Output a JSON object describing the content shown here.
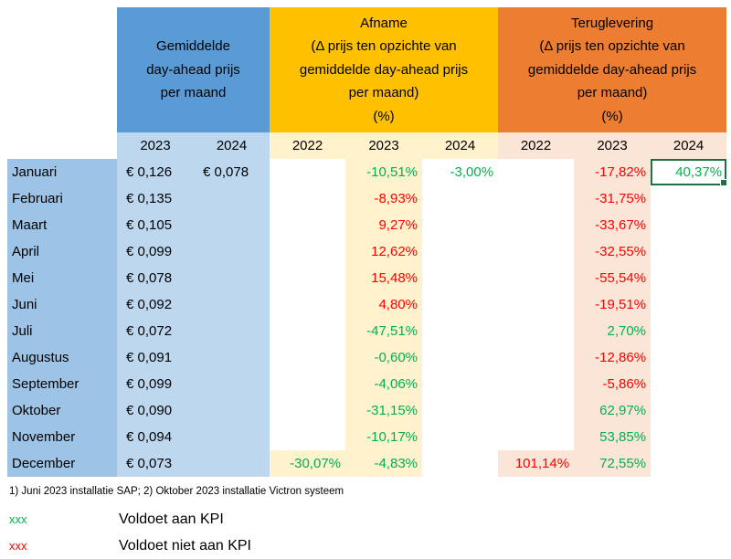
{
  "colors": {
    "group_header_blue": "#5B9BD5",
    "month_column_blue": "#9DC3E6",
    "price_column_blue": "#BDD7EE",
    "group_header_gold": "#FFC000",
    "afname_tint": "#FFF2CC",
    "group_header_orange": "#ED7D31",
    "teruglevering_tint": "#FBE5D6",
    "kpi_good_green": "#00B050",
    "kpi_bad_red": "#FF0000",
    "selection_border_green": "#1E7145"
  },
  "header": {
    "price": {
      "lines": [
        "Gemiddelde",
        "day-ahead prijs",
        "per maand"
      ]
    },
    "afname": {
      "lines": [
        "Afname",
        "(Δ prijs ten opzichte van",
        "gemiddelde day-ahead prijs",
        "per maand)",
        "(%)"
      ]
    },
    "teruglevering": {
      "lines": [
        "Teruglevering",
        "(Δ prijs ten opzichte van",
        "gemiddelde day-ahead prijs",
        "per maand)",
        "(%)"
      ]
    }
  },
  "year_headers": {
    "price": [
      "2023",
      "2024"
    ],
    "afname": [
      "2022",
      "2023",
      "2024"
    ],
    "teruglevering": [
      "2022",
      "2023",
      "2024"
    ]
  },
  "rows": [
    {
      "month": "Januari",
      "price_2023": "€ 0,126",
      "price_2024": "€ 0,078",
      "afname_2023": {
        "v": "-10,51%",
        "s": "good"
      },
      "afname_2024": {
        "v": "-3,00%",
        "s": "good"
      },
      "teruglevering_2023": {
        "v": "-17,82%",
        "s": "bad"
      },
      "teruglevering_2024": {
        "v": "40,37%",
        "s": "good",
        "selected": true
      }
    },
    {
      "month": "Februari",
      "price_2023": "€ 0,135",
      "afname_2023": {
        "v": "-8,93%",
        "s": "bad"
      },
      "teruglevering_2023": {
        "v": "-31,75%",
        "s": "bad"
      }
    },
    {
      "month": "Maart",
      "price_2023": "€ 0,105",
      "afname_2023": {
        "v": "9,27%",
        "s": "bad"
      },
      "teruglevering_2023": {
        "v": "-33,67%",
        "s": "bad"
      }
    },
    {
      "month": "April",
      "price_2023": "€ 0,099",
      "afname_2023": {
        "v": "12,62%",
        "s": "bad"
      },
      "teruglevering_2023": {
        "v": "-32,55%",
        "s": "bad"
      }
    },
    {
      "month": "Mei",
      "price_2023": "€ 0,078",
      "afname_2023": {
        "v": "15,48%",
        "s": "bad"
      },
      "teruglevering_2023": {
        "v": "-55,54%",
        "s": "bad"
      }
    },
    {
      "month": "Juni",
      "price_2023": "€ 0,092",
      "afname_2023": {
        "v": "4,80%",
        "s": "bad"
      },
      "teruglevering_2023": {
        "v": "-19,51%",
        "s": "bad"
      }
    },
    {
      "month": "Juli",
      "price_2023": "€ 0,072",
      "afname_2023": {
        "v": "-47,51%",
        "s": "good"
      },
      "teruglevering_2023": {
        "v": "2,70%",
        "s": "good"
      }
    },
    {
      "month": "Augustus",
      "price_2023": "€ 0,091",
      "afname_2023": {
        "v": "-0,60%",
        "s": "good"
      },
      "teruglevering_2023": {
        "v": "-12,86%",
        "s": "bad"
      }
    },
    {
      "month": "September",
      "price_2023": "€ 0,099",
      "afname_2023": {
        "v": "-4,06%",
        "s": "good"
      },
      "teruglevering_2023": {
        "v": "-5,86%",
        "s": "bad"
      }
    },
    {
      "month": "Oktober",
      "price_2023": "€ 0,090",
      "afname_2023": {
        "v": "-31,15%",
        "s": "good"
      },
      "teruglevering_2023": {
        "v": "62,97%",
        "s": "good"
      }
    },
    {
      "month": "November",
      "price_2023": "€ 0,094",
      "afname_2023": {
        "v": "-10,17%",
        "s": "good"
      },
      "teruglevering_2023": {
        "v": "53,85%",
        "s": "good"
      }
    },
    {
      "month": "December",
      "price_2023": "€ 0,073",
      "afname_2022": {
        "v": "-30,07%",
        "s": "good",
        "tint": true
      },
      "afname_2023": {
        "v": "-4,83%",
        "s": "good"
      },
      "teruglevering_2022": {
        "v": "101,14%",
        "s": "bad",
        "tint": true
      },
      "teruglevering_2023": {
        "v": "72,55%",
        "s": "good"
      }
    }
  ],
  "footnote": "1) Juni 2023 installatie SAP; 2) Oktober 2023 installatie Victron systeem",
  "legend": [
    {
      "marker": "xxx",
      "status": "good",
      "label": "Voldoet aan KPI"
    },
    {
      "marker": "xxx",
      "status": "bad",
      "label": "Voldoet niet aan KPI"
    }
  ]
}
